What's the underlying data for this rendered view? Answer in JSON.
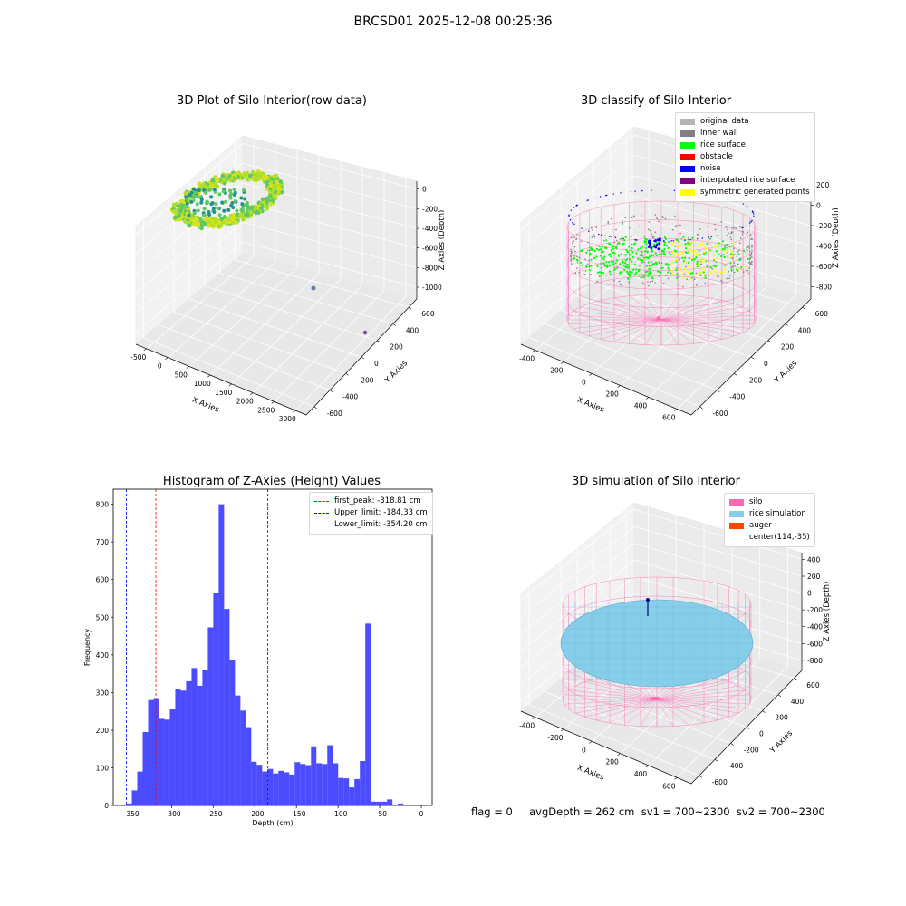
{
  "suptitle": "BRCSD01 2025-12-08 00:25:36",
  "status_text": "flag = 0     avgDepth = 262 cm  sv1 = 700~2300  sv2 = 700~2300",
  "chart_data": [
    {
      "type": "scatter3d",
      "title": "3D Plot of Silo Interior(row data)",
      "xlabel": "X Axies",
      "ylabel": "Y Axies",
      "zlabel": "Z Axies (Depth)",
      "x_ticks": [
        "-500",
        "0",
        "500",
        "1000",
        "1500",
        "2000",
        "2500",
        "3000"
      ],
      "y_ticks": [
        "-600",
        "-400",
        "-200",
        "0",
        "200",
        "400",
        "600"
      ],
      "z_ticks": [
        "0",
        "-200",
        "-400",
        "-600",
        "-800",
        "-1000"
      ],
      "xlim": [
        -600,
        3000
      ],
      "ylim": [
        -650,
        650
      ],
      "zlim": [
        -1050,
        30
      ],
      "grid": true,
      "colormap": [
        "#3b528b",
        "#21918c",
        "#5ec962",
        "#b5de2b",
        "#d6e21a"
      ]
    },
    {
      "type": "scatter3d",
      "title": "3D classify of Silo Interior",
      "xlabel": "X Axies",
      "ylabel": "Y Axies",
      "zlabel": "Z Axies (Depth)",
      "x_ticks": [
        "-400",
        "-200",
        "0",
        "200",
        "400",
        "600"
      ],
      "y_ticks": [
        "-600",
        "-400",
        "-200",
        "0",
        "200",
        "400",
        "600"
      ],
      "z_ticks": [
        "200",
        "0",
        "-200",
        "-400",
        "-600",
        "-800"
      ],
      "xlim": [
        -520,
        720
      ],
      "ylim": [
        -650,
        650
      ],
      "zlim": [
        -900,
        300
      ],
      "grid": true,
      "legend_position": "top-right",
      "legend": [
        {
          "label": "original data",
          "color": "#b4b4b4"
        },
        {
          "label": "inner wall",
          "color": "#808080"
        },
        {
          "label": "rice surface",
          "color": "#00ff00"
        },
        {
          "label": "obstacle",
          "color": "#ff0000"
        },
        {
          "label": "noise",
          "color": "#0000ff"
        },
        {
          "label": "interpolated rice surface",
          "color": "#800080"
        },
        {
          "label": "symmetric generated points",
          "color": "#ffff00"
        }
      ],
      "silo_color": "#ff69b4"
    },
    {
      "type": "bar",
      "title": "Histogram of Z-Axies (Height) Values",
      "xlabel": "Depth (cm)",
      "ylabel": "Frequency",
      "xlim": [
        -370,
        13
      ],
      "ylim": [
        0,
        840
      ],
      "x_ticks": [
        -350,
        -300,
        -250,
        -200,
        -150,
        -100,
        -50,
        0
      ],
      "y_ticks": [
        0,
        100,
        200,
        300,
        400,
        500,
        600,
        700,
        800
      ],
      "bin_width": 6.52,
      "bin_start": -354.2,
      "values": [
        5,
        40,
        90,
        195,
        280,
        285,
        230,
        228,
        255,
        310,
        305,
        330,
        365,
        318,
        360,
        473,
        565,
        800,
        522,
        385,
        292,
        252,
        208,
        116,
        108,
        90,
        97,
        85,
        92,
        88,
        82,
        115,
        110,
        107,
        157,
        112,
        110,
        160,
        112,
        73,
        72,
        48,
        70,
        118,
        483,
        10,
        10,
        10,
        16,
        0,
        5
      ],
      "bar_color": "#0000ff",
      "bar_opacity": 0.7,
      "vlines": [
        {
          "label": "first_peak: -318.81 cm",
          "x": -318.81,
          "color": "#ff0000"
        },
        {
          "label": "Upper_limit: -184.33 cm",
          "x": -184.33,
          "color": "#0000ff"
        },
        {
          "label": "Lower_limit: -354.20 cm",
          "x": -354.2,
          "color": "#0000ff"
        }
      ],
      "legend_position": "top-right"
    },
    {
      "type": "surface3d",
      "title": "3D simulation of Silo Interior",
      "xlabel": "X Axies",
      "ylabel": "Y Axies",
      "zlabel": "Z Axies (Depth)",
      "x_ticks": [
        "-400",
        "-200",
        "0",
        "200",
        "400",
        "600"
      ],
      "y_ticks": [
        "-600",
        "-400",
        "-200",
        "0",
        "200",
        "400",
        "600"
      ],
      "z_ticks": [
        "400",
        "200",
        "0",
        "-200",
        "-400",
        "-600",
        "-800"
      ],
      "xlim": [
        -520,
        720
      ],
      "ylim": [
        -650,
        650
      ],
      "zlim": [
        -900,
        450
      ],
      "grid": true,
      "legend_position": "top-right",
      "legend": [
        {
          "label": "silo",
          "color": "#ff69b4"
        },
        {
          "label": "rice simulation",
          "color": "#87ceeb"
        },
        {
          "label": "auger",
          "color": "#ff4500"
        },
        {
          "label": "center(114,-35)",
          "color": ""
        }
      ],
      "center": [
        114,
        -35
      ]
    }
  ]
}
